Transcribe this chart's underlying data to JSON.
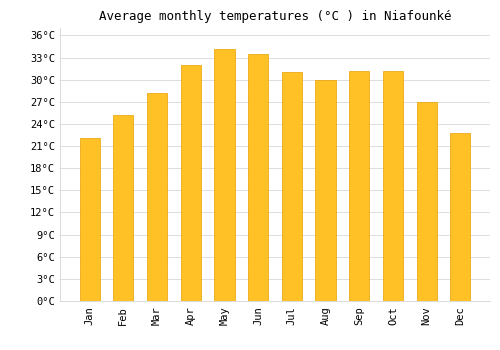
{
  "months": [
    "Jan",
    "Feb",
    "Mar",
    "Apr",
    "May",
    "Jun",
    "Jul",
    "Aug",
    "Sep",
    "Oct",
    "Nov",
    "Dec"
  ],
  "values": [
    22.1,
    25.2,
    28.2,
    32.0,
    34.2,
    33.5,
    31.1,
    29.9,
    31.2,
    31.2,
    27.0,
    22.8
  ],
  "bar_color": "#FFC125",
  "bar_edge_color": "#E8A000",
  "title": "Average monthly temperatures (°C ) in Niafounké",
  "title_fontsize": 9,
  "ylim": [
    0,
    37
  ],
  "yticks": [
    0,
    3,
    6,
    9,
    12,
    15,
    18,
    21,
    24,
    27,
    30,
    33,
    36
  ],
  "ytick_labels": [
    "0°C",
    "3°C",
    "6°C",
    "9°C",
    "12°C",
    "15°C",
    "18°C",
    "21°C",
    "24°C",
    "27°C",
    "30°C",
    "33°C",
    "36°C"
  ],
  "grid_color": "#dddddd",
  "background_color": "#ffffff",
  "tick_label_fontsize": 7.5,
  "bar_width": 0.6
}
